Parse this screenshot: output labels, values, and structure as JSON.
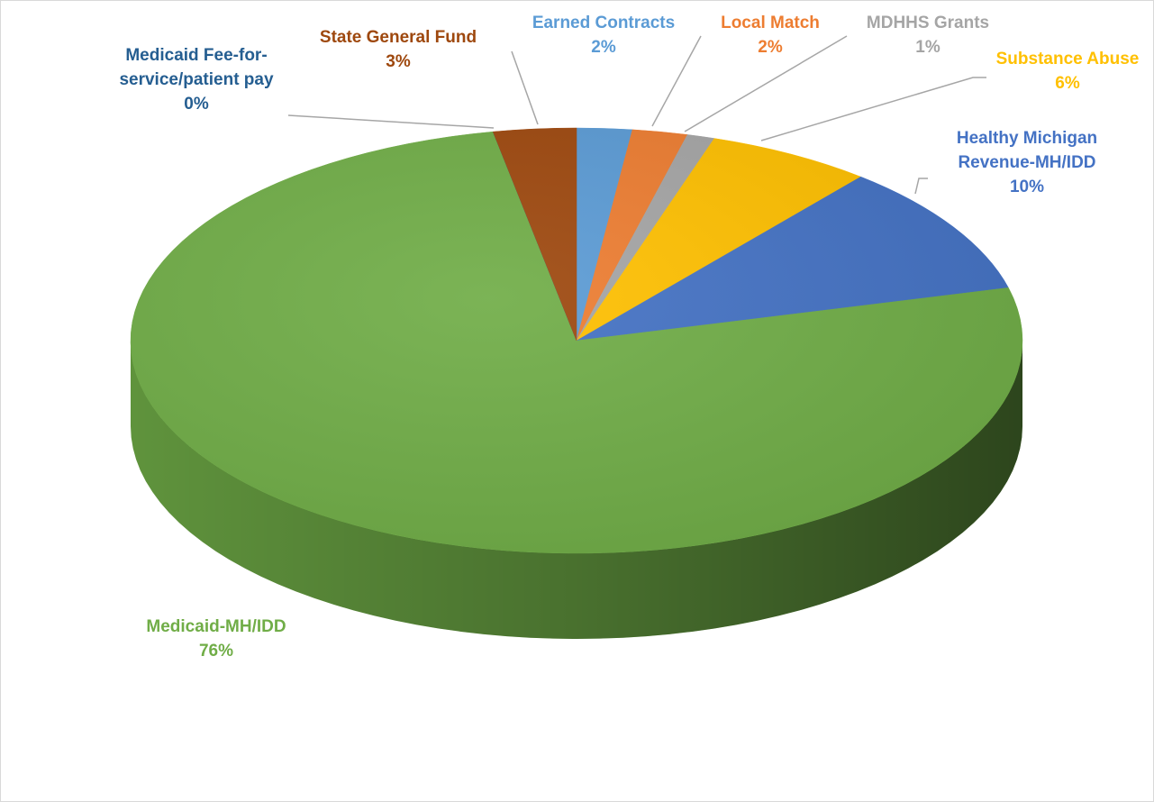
{
  "chart_data": {
    "type": "pie",
    "categories": [
      "Earned Contracts",
      "Local Match",
      "MDHHS Grants",
      "Substance Abuse",
      "Healthy Michigan Revenue-MH/IDD",
      "Medicaid-MH/IDD",
      "Medicaid Fee-for-service/patient pay",
      "State General Fund"
    ],
    "values": [
      2,
      2,
      1,
      6,
      10,
      76,
      0,
      3
    ],
    "value_labels": [
      "2%",
      "2%",
      "1%",
      "6%",
      "10%",
      "76%",
      "0%",
      "3%"
    ],
    "colors": [
      "#5b9bd5",
      "#ed7d31",
      "#a5a5a5",
      "#ffc000",
      "#4472c4",
      "#70ad47",
      "#255e91",
      "#9e480e"
    ]
  }
}
